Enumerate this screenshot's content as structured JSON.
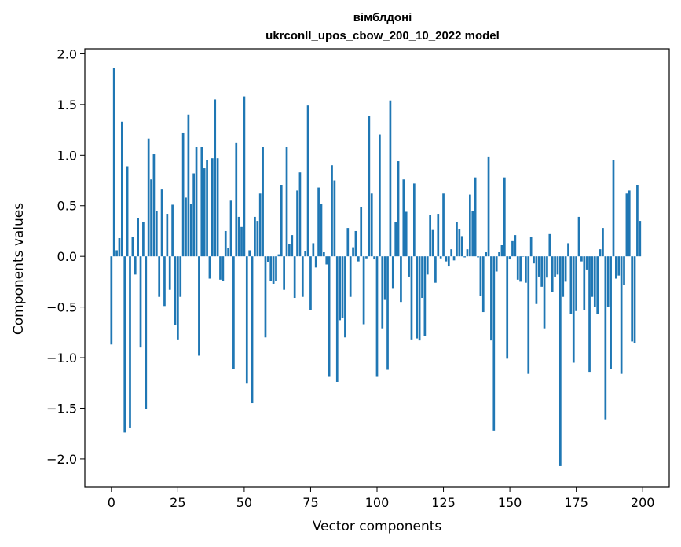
{
  "chart_data": {
    "type": "bar",
    "title_line1": "вімблдоні",
    "title_line2": "ukrconll_upos_cbow_200_10_2022 model",
    "xlabel": "Vector components",
    "ylabel": "Components values",
    "xlim": [
      -10,
      210
    ],
    "ylim": [
      -2.28,
      2.05
    ],
    "xticks": [
      0,
      25,
      50,
      75,
      100,
      125,
      150,
      175,
      200
    ],
    "xtick_labels": [
      "0",
      "25",
      "50",
      "75",
      "100",
      "125",
      "150",
      "175",
      "200"
    ],
    "yticks": [
      -2.0,
      -1.5,
      -1.0,
      -0.5,
      0.0,
      0.5,
      1.0,
      1.5,
      2.0
    ],
    "ytick_labels": [
      "−2.0",
      "−1.5",
      "−1.0",
      "−0.5",
      "0.0",
      "0.5",
      "1.0",
      "1.5",
      "2.0"
    ],
    "bar_color": "#1f77b4",
    "values": [
      -0.87,
      1.86,
      0.06,
      0.18,
      1.33,
      -1.74,
      0.89,
      -1.69,
      0.19,
      -0.18,
      0.38,
      -0.9,
      0.34,
      -1.51,
      1.16,
      0.76,
      1.01,
      0.45,
      -0.4,
      0.66,
      -0.49,
      0.42,
      -0.33,
      0.51,
      -0.68,
      -0.82,
      -0.4,
      1.22,
      0.58,
      1.4,
      0.52,
      0.82,
      1.08,
      -0.98,
      1.08,
      0.87,
      0.95,
      -0.22,
      0.97,
      1.55,
      0.97,
      -0.23,
      -0.24,
      0.25,
      0.08,
      0.55,
      -1.11,
      1.12,
      0.39,
      0.29,
      1.58,
      -1.25,
      0.06,
      -1.45,
      0.39,
      0.35,
      0.62,
      1.08,
      -0.8,
      -0.06,
      -0.24,
      -0.27,
      -0.24,
      0.02,
      0.7,
      -0.33,
      1.08,
      0.12,
      0.21,
      -0.41,
      0.65,
      0.83,
      -0.4,
      0.05,
      1.49,
      -0.53,
      0.13,
      -0.11,
      0.68,
      0.52,
      0.04,
      -0.08,
      -1.19,
      0.9,
      0.75,
      -1.24,
      -0.63,
      -0.61,
      -0.8,
      0.28,
      -0.4,
      0.09,
      0.25,
      -0.05,
      0.49,
      -0.67,
      -0.02,
      1.39,
      0.62,
      -0.03,
      -1.19,
      1.2,
      -0.71,
      -0.43,
      -1.12,
      1.54,
      -0.32,
      0.34,
      0.94,
      -0.45,
      0.76,
      0.44,
      -0.2,
      -0.82,
      0.72,
      -0.81,
      -0.83,
      -0.41,
      -0.79,
      -0.18,
      0.41,
      0.26,
      -0.26,
      0.42,
      -0.02,
      0.62,
      -0.05,
      -0.1,
      0.07,
      -0.04,
      0.34,
      0.27,
      0.2,
      -0.01,
      0.07,
      0.61,
      0.45,
      0.78,
      -0.01,
      -0.39,
      -0.55,
      0.04,
      0.98,
      -0.83,
      -1.72,
      -0.15,
      0.04,
      0.11,
      0.78,
      -1.01,
      -0.03,
      0.15,
      0.21,
      -0.23,
      -0.25,
      0.0,
      -0.26,
      -1.16,
      0.19,
      -0.07,
      -0.47,
      -0.2,
      -0.3,
      -0.71,
      -0.21,
      0.22,
      -0.35,
      -0.2,
      -0.18,
      -2.07,
      -0.4,
      -0.25,
      0.13,
      -0.57,
      -1.05,
      -0.54,
      0.39,
      -0.05,
      -0.53,
      -0.13,
      -1.14,
      -0.4,
      -0.5,
      -0.57,
      0.07,
      0.28,
      -1.61,
      -0.5,
      -1.11,
      0.95,
      -0.22,
      -0.19,
      -1.16,
      -0.28,
      0.62,
      0.65,
      -0.84,
      -0.86,
      0.7,
      0.35
    ]
  }
}
